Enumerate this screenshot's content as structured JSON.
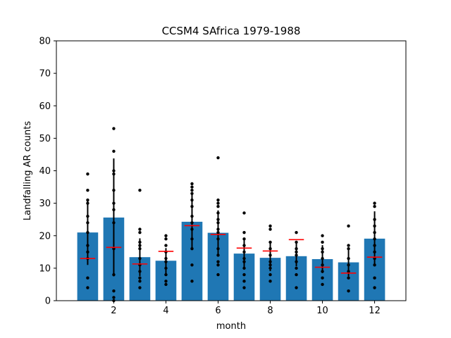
{
  "chart_data": {
    "type": "bar",
    "title": "CCSM4 SAfrica 1979-1988",
    "xlabel": "month",
    "ylabel": "Landfalling AR counts",
    "xlim": [
      -0.2,
      13.2
    ],
    "ylim": [
      0,
      80
    ],
    "xticks": [
      2,
      4,
      6,
      8,
      10,
      12
    ],
    "yticks": [
      0,
      10,
      20,
      30,
      40,
      50,
      60,
      70,
      80
    ],
    "grid": false,
    "bar_color": "#1f77b4",
    "errorbar_color": "#000000",
    "reference_color": "#ff0000",
    "point_color": "#000000",
    "categories": [
      1,
      2,
      3,
      4,
      5,
      6,
      7,
      8,
      9,
      10,
      11,
      12
    ],
    "values": [
      21.0,
      25.6,
      13.4,
      12.3,
      24.3,
      20.9,
      14.5,
      13.2,
      13.7,
      12.8,
      11.8,
      19.1
    ],
    "error_low": [
      11.0,
      7.5,
      7.6,
      8.4,
      16.0,
      14.0,
      10.0,
      9.1,
      10.6,
      8.5,
      7.5,
      10.7
    ],
    "error_high": [
      31.0,
      43.8,
      19.2,
      16.2,
      32.6,
      27.8,
      19.0,
      18.0,
      17.7,
      17.1,
      16.1,
      27.5
    ],
    "reference_values": [
      13.0,
      16.4,
      11.3,
      15.2,
      23.1,
      20.4,
      16.2,
      15.3,
      18.8,
      10.3,
      8.5,
      13.4
    ],
    "points": [
      [
        4,
        7,
        13,
        15,
        17,
        21,
        24,
        26,
        30,
        31,
        34,
        39
      ],
      [
        0,
        1,
        3,
        8,
        16,
        24,
        28,
        30,
        34,
        39,
        40,
        46,
        53
      ],
      [
        4,
        6,
        7,
        9,
        11,
        13,
        16,
        17,
        18,
        21,
        22,
        34
      ],
      [
        5,
        6,
        8,
        10,
        12,
        13,
        15,
        17,
        19,
        20
      ],
      [
        6,
        11,
        16,
        19,
        22,
        24,
        26,
        29,
        31,
        33,
        34,
        35,
        36
      ],
      [
        8,
        11,
        12,
        14,
        16,
        19,
        21,
        22,
        24,
        25,
        27,
        29,
        30,
        31,
        44
      ],
      [
        4,
        6,
        8,
        10,
        12,
        13,
        15,
        17,
        19,
        21,
        27
      ],
      [
        6,
        8,
        10,
        11,
        12,
        14,
        16,
        18,
        22,
        23
      ],
      [
        4,
        8,
        10,
        12,
        14,
        15,
        16,
        18,
        21
      ],
      [
        5,
        7,
        9,
        11,
        13,
        15,
        16,
        18,
        20
      ],
      [
        3,
        7,
        9,
        11,
        13,
        16,
        17,
        23
      ],
      [
        4,
        7,
        11,
        13,
        15,
        17,
        19,
        21,
        23,
        25,
        29,
        30
      ]
    ]
  }
}
